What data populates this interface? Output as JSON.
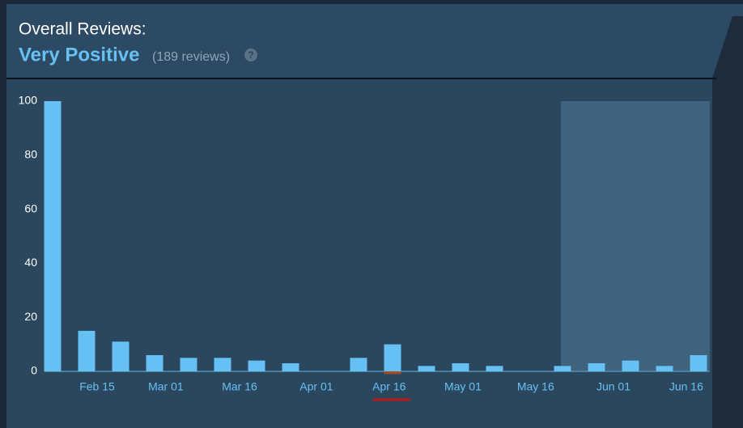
{
  "chart_data": {
    "type": "bar",
    "title": "Overall Reviews:",
    "summary": "Very Positive",
    "count_label": "(189 reviews)",
    "help_icon": "?",
    "categories": [
      null,
      null,
      null,
      null,
      null,
      null,
      null,
      null,
      null,
      null,
      null,
      null,
      null,
      null,
      null,
      null,
      null,
      null,
      null,
      null
    ],
    "series": [
      {
        "color": "#66c0f4",
        "values": [
          100,
          15,
          11,
          6,
          5,
          5,
          4,
          3,
          0,
          5,
          10,
          2,
          3,
          2,
          0,
          2,
          3,
          4,
          2,
          6
        ]
      },
      {
        "color": "#a34c25",
        "values": [
          0,
          0,
          0,
          0,
          0,
          0,
          0,
          0,
          0,
          0,
          -1,
          0,
          0,
          0,
          0,
          0,
          0,
          0,
          0,
          0
        ]
      }
    ],
    "ylim": [
      0,
      100
    ],
    "yticks": [
      0,
      20,
      40,
      60,
      80,
      100
    ],
    "xticks": [
      {
        "value": 1.31,
        "label": "Feb 15"
      },
      {
        "value": 3.33,
        "label": "Mar 01"
      },
      {
        "value": 5.5,
        "label": "Mar 16"
      },
      {
        "value": 7.76,
        "label": "Apr 01"
      },
      {
        "value": 9.9,
        "label": "Apr 16"
      },
      {
        "value": 12.07,
        "label": "May 01"
      },
      {
        "value": 14.21,
        "label": "May 16"
      },
      {
        "value": 16.5,
        "label": "Jun 01"
      },
      {
        "value": 18.64,
        "label": "Jun 16"
      }
    ],
    "grid": false
  }
}
